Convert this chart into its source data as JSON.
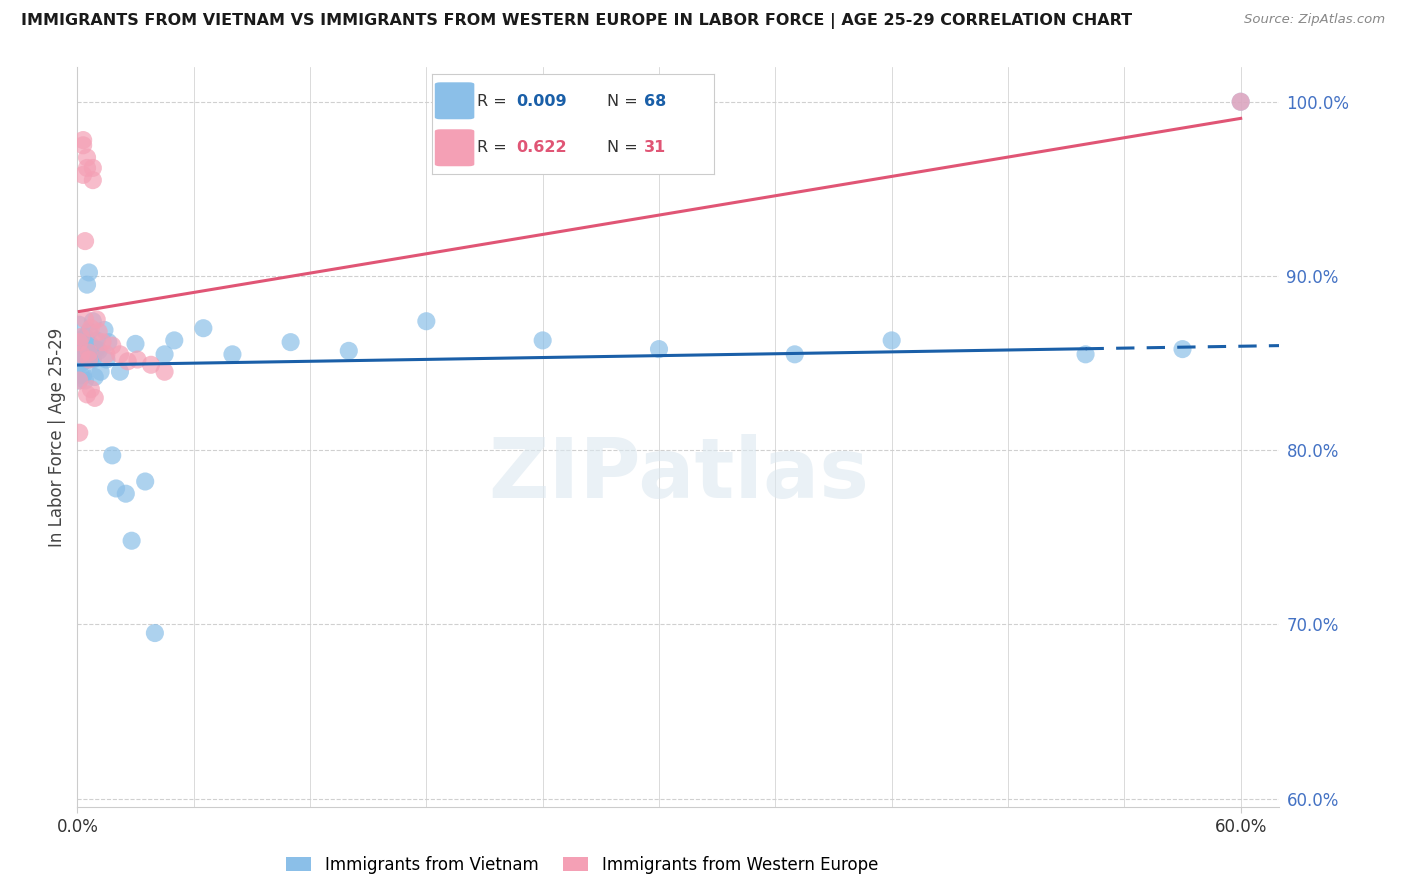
{
  "title": "IMMIGRANTS FROM VIETNAM VS IMMIGRANTS FROM WESTERN EUROPE IN LABOR FORCE | AGE 25-29 CORRELATION CHART",
  "source": "Source: ZipAtlas.com",
  "ylabel": "In Labor Force | Age 25-29",
  "right_ytick_labels": [
    "100.0%",
    "90.0%",
    "80.0%",
    "70.0%",
    "60.0%"
  ],
  "right_ytick_values": [
    1.0,
    0.9,
    0.8,
    0.7,
    0.6
  ],
  "xlim": [
    0.0,
    0.62
  ],
  "ylim": [
    0.595,
    1.02
  ],
  "color_vietnam": "#8bbfe8",
  "color_western_europe": "#f4a0b5",
  "color_line_vietnam": "#1a5fa8",
  "color_line_western_europe": "#e05575",
  "watermark": "ZIPatlas",
  "vietnam_x": [
    0.0005,
    0.001,
    0.001,
    0.001,
    0.0015,
    0.002,
    0.002,
    0.002,
    0.002,
    0.002,
    0.0025,
    0.003,
    0.003,
    0.003,
    0.003,
    0.003,
    0.003,
    0.0035,
    0.004,
    0.004,
    0.004,
    0.004,
    0.004,
    0.005,
    0.005,
    0.005,
    0.005,
    0.006,
    0.006,
    0.006,
    0.006,
    0.006,
    0.007,
    0.007,
    0.007,
    0.008,
    0.008,
    0.009,
    0.009,
    0.01,
    0.01,
    0.011,
    0.012,
    0.014,
    0.015,
    0.016,
    0.018,
    0.02,
    0.022,
    0.025,
    0.028,
    0.03,
    0.035,
    0.04,
    0.045,
    0.05,
    0.065,
    0.08,
    0.11,
    0.14,
    0.18,
    0.24,
    0.3,
    0.37,
    0.42,
    0.52,
    0.57,
    0.6
  ],
  "vietnam_y": [
    0.855,
    0.863,
    0.872,
    0.84,
    0.861,
    0.855,
    0.861,
    0.843,
    0.862,
    0.85,
    0.855,
    0.861,
    0.854,
    0.857,
    0.851,
    0.843,
    0.858,
    0.854,
    0.852,
    0.858,
    0.84,
    0.865,
    0.852,
    0.855,
    0.86,
    0.895,
    0.858,
    0.868,
    0.852,
    0.858,
    0.852,
    0.902,
    0.86,
    0.86,
    0.853,
    0.874,
    0.852,
    0.858,
    0.842,
    0.863,
    0.858,
    0.857,
    0.845,
    0.869,
    0.852,
    0.862,
    0.797,
    0.778,
    0.845,
    0.775,
    0.748,
    0.861,
    0.782,
    0.695,
    0.855,
    0.863,
    0.87,
    0.855,
    0.862,
    0.857,
    0.874,
    0.863,
    0.858,
    0.855,
    0.863,
    0.855,
    0.858,
    1.0
  ],
  "western_europe_x": [
    0.001,
    0.001,
    0.001,
    0.002,
    0.002,
    0.003,
    0.003,
    0.003,
    0.004,
    0.004,
    0.005,
    0.005,
    0.005,
    0.006,
    0.006,
    0.007,
    0.007,
    0.008,
    0.008,
    0.009,
    0.01,
    0.011,
    0.013,
    0.015,
    0.018,
    0.022,
    0.026,
    0.031,
    0.038,
    0.045,
    0.6
  ],
  "western_europe_y": [
    0.81,
    0.84,
    0.862,
    0.865,
    0.855,
    0.975,
    0.978,
    0.958,
    0.92,
    0.875,
    0.962,
    0.968,
    0.832,
    0.856,
    0.852,
    0.87,
    0.835,
    0.955,
    0.962,
    0.83,
    0.875,
    0.868,
    0.862,
    0.855,
    0.86,
    0.855,
    0.851,
    0.852,
    0.849,
    0.845,
    1.0
  ]
}
